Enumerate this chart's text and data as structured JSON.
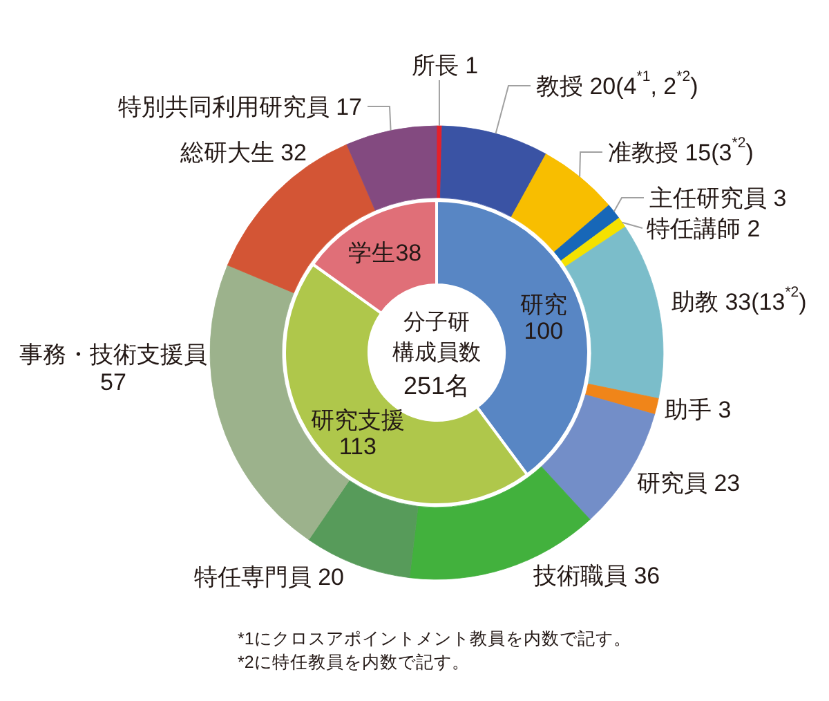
{
  "chart_data": [
    {
      "type": "donut",
      "title": "分子研構成員数",
      "subtitle": "251名",
      "categories": [
        "研究",
        "研究支援",
        "学生"
      ],
      "values": [
        100,
        113,
        38
      ],
      "colors": [
        "#5886c4",
        "#afc74b",
        "#e06f78"
      ],
      "data_labels": true
    },
    {
      "type": "donut",
      "categories": [
        "所長",
        "教授",
        "准教授",
        "主任研究員",
        "特任講師",
        "助教",
        "助手",
        "研究員",
        "技術職員",
        "特任専門員",
        "事務・技術支援員",
        "総研大生",
        "特別共同利用研究員"
      ],
      "values": [
        1,
        20,
        15,
        3,
        2,
        33,
        3,
        23,
        36,
        20,
        57,
        32,
        17
      ],
      "value_labels": [
        "1",
        "20(4$^{*1}$, 2$^{*2}$)",
        "15(3$^{*2}$)",
        "3",
        "2",
        "33(13$^{*2}$)",
        "3",
        "23",
        "36",
        "20",
        "57",
        "32",
        "17"
      ],
      "colors": [
        "#e4212a",
        "#3a53a4",
        "#f8be00",
        "#1767b8",
        "#f5e100",
        "#7bbdca",
        "#f08519",
        "#738ec8",
        "#42b13d",
        "#579b5a",
        "#9cb28c",
        "#d35535",
        "#834a80"
      ],
      "annotations": [
        "*1にクロスアポイントメント教員を内数で記す。",
        "*2に特任教員を内数で記す。"
      ]
    }
  ]
}
